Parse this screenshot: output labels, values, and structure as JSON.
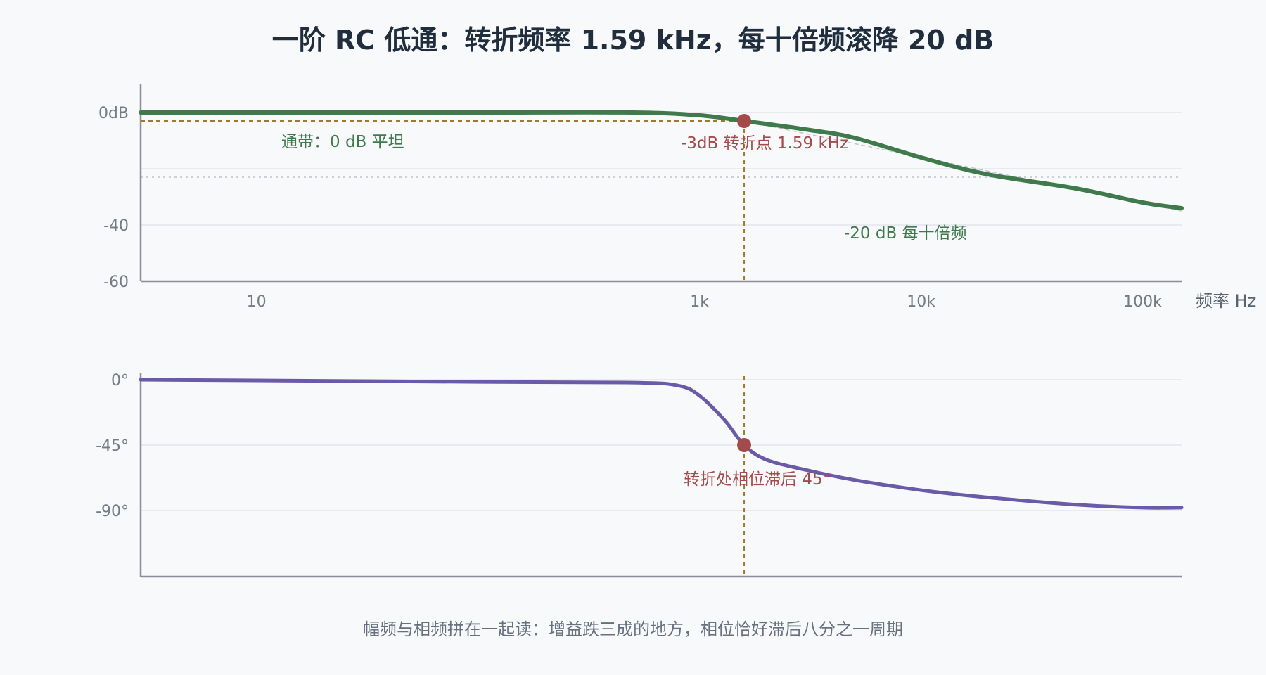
{
  "chart_data": {
    "type": "line",
    "title": "一阶 RC 低通：转折频率 1.59 kHz，每十倍频滚降 20 dB",
    "caption": "幅频与相频拼在一起读：增益跌三成的地方，相位恰好滞后八分之一周期",
    "xlabel": "频率 Hz",
    "x_scale": "log",
    "xticks": [
      {
        "value": 10,
        "label": "10"
      },
      {
        "value": 1000,
        "label": "1k"
      },
      {
        "value": 10000,
        "label": "10k"
      },
      {
        "value": 100000,
        "label": "100k"
      }
    ],
    "corner_frequency_hz": 1590,
    "magnitude": {
      "ylim": [
        -60,
        10
      ],
      "yticks": [
        {
          "value": 0,
          "label": "0dB"
        },
        {
          "value": -40,
          "label": "-40"
        },
        {
          "value": -60,
          "label": "-60"
        }
      ],
      "series": [
        {
          "x": [
            3,
            10,
            100,
            500,
            1000,
            1590,
            3000,
            5000,
            10000,
            20000,
            50000,
            100000,
            150000
          ],
          "y": [
            0,
            0,
            0,
            0,
            -1,
            -3,
            -6,
            -9,
            -16,
            -22,
            -27,
            -32,
            -34
          ]
        }
      ],
      "asymptote": {
        "x": [
          1590,
          150000
        ],
        "y": [
          -3,
          -35
        ]
      },
      "reference_line_y": -23,
      "annotations": {
        "passband": "通带：0 dB 平坦",
        "corner": "-3dB 转折点 1.59 kHz",
        "rolloff": "-20 dB 每十倍频"
      }
    },
    "phase": {
      "ylim": [
        -135,
        0
      ],
      "yticks": [
        {
          "value": 0,
          "label": "0°"
        },
        {
          "value": -45,
          "label": "-45°"
        },
        {
          "value": -90,
          "label": "-90°"
        }
      ],
      "series": [
        {
          "x": [
            3,
            10,
            100,
            500,
            800,
            1000,
            1300,
            1590,
            2000,
            3000,
            5000,
            10000,
            20000,
            50000,
            100000,
            150000
          ],
          "y": [
            0,
            -0.5,
            -1.5,
            -2,
            -4,
            -11,
            -28,
            -45,
            -55,
            -62,
            -69,
            -76,
            -81,
            -86,
            -88,
            -88
          ]
        }
      ],
      "annotations": {
        "corner": "转折处相位滞后 45°"
      }
    },
    "colors": {
      "magnitude": "#3e7a4c",
      "phase": "#6a5aa8",
      "marker": "#a34a4a",
      "guide": "#a07a2c"
    }
  }
}
